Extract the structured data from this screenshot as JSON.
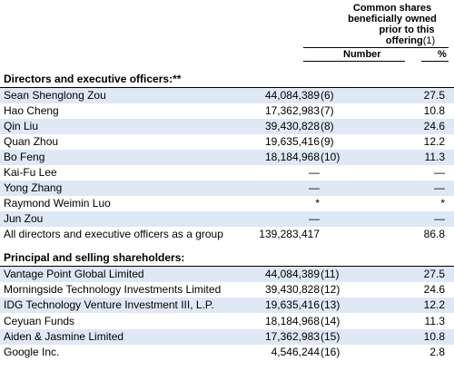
{
  "header": {
    "group_lines": [
      "Common shares",
      "beneficially owned",
      "prior to this",
      "offering"
    ],
    "group_ref": "(1)",
    "col_number": "Number",
    "col_pct": "%"
  },
  "sections": {
    "directors_title": "Directors and executive officers:**",
    "shareholders_title": "Principal and selling shareholders:"
  },
  "directors": [
    {
      "name": "Sean Shenglong Zou",
      "number": "44,084,389",
      "ref": "(6)",
      "pct": "27.5"
    },
    {
      "name": "Hao Cheng",
      "number": "17,362,983",
      "ref": "(7)",
      "pct": "10.8"
    },
    {
      "name": "Qin Liu",
      "number": "39,430,828",
      "ref": "(8)",
      "pct": "24.6"
    },
    {
      "name": "Quan Zhou",
      "number": "19,635,416",
      "ref": "(9)",
      "pct": "12.2"
    },
    {
      "name": "Bo Feng",
      "number": "18,184,968",
      "ref": "(10)",
      "pct": "11.3"
    },
    {
      "name": "Kai-Fu Lee",
      "number": "—",
      "ref": "",
      "pct": "—"
    },
    {
      "name": "Yong Zhang",
      "number": "—",
      "ref": "",
      "pct": "—"
    },
    {
      "name": "Raymond Weimin Luo",
      "number": "*",
      "ref": "",
      "pct": "*"
    },
    {
      "name": "Jun Zou",
      "number": "—",
      "ref": "",
      "pct": "—"
    },
    {
      "name": "All directors and executive officers as a group",
      "number": "139,283,417",
      "ref": "",
      "pct": "86.8"
    }
  ],
  "shareholders": [
    {
      "name": "Vantage Point Global Limited",
      "number": "44,084,389",
      "ref": "(11)",
      "pct": "27.5"
    },
    {
      "name": "Morningside Technology Investments Limited",
      "number": "39,430,828",
      "ref": "(12)",
      "pct": "24.6"
    },
    {
      "name": "IDG Technology Venture Investment III, L.P.",
      "number": "19,635,416",
      "ref": "(13)",
      "pct": "12.2"
    },
    {
      "name": "Ceyuan Funds",
      "number": "18,184,968",
      "ref": "(14)",
      "pct": "11.3"
    },
    {
      "name": "Aiden & Jasmine Limited",
      "number": "17,362,983",
      "ref": "(15)",
      "pct": "10.8"
    },
    {
      "name": "Google Inc.",
      "number": "4,546,244",
      "ref": "(16)",
      "pct": "2.8"
    }
  ]
}
